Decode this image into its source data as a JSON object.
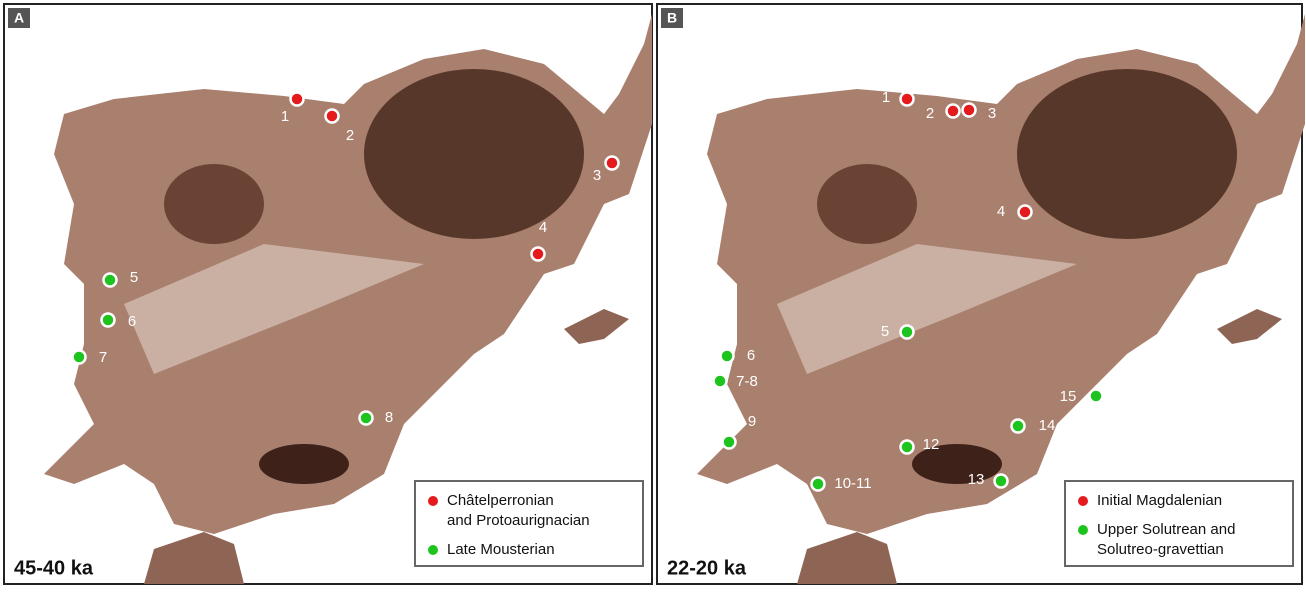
{
  "panels": [
    {
      "label": "A",
      "period": "45-40 ka",
      "legend": [
        {
          "lines": [
            "Châtelperronian",
            "and Protoaurignacian"
          ],
          "color": "#e41a1c",
          "sites": [
            "1",
            "2",
            "3",
            "4"
          ]
        },
        {
          "lines": [
            "Late Mousterian"
          ],
          "color": "#1ec41e",
          "sites": [
            "5",
            "6",
            "7",
            "8"
          ]
        }
      ]
    },
    {
      "label": "B",
      "period": "22-20 ka",
      "legend": [
        {
          "lines": [
            "Initial Magdalenian"
          ],
          "color": "#e41a1c",
          "sites": [
            "1",
            "2",
            "3",
            "4"
          ]
        },
        {
          "lines": [
            "Upper Solutrean and",
            "Solutreo-gravettian"
          ],
          "color": "#1ec41e",
          "sites": [
            "5",
            "6",
            "7-8",
            "9",
            "10-11",
            "12",
            "13",
            "14",
            "15"
          ]
        }
      ]
    }
  ]
}
